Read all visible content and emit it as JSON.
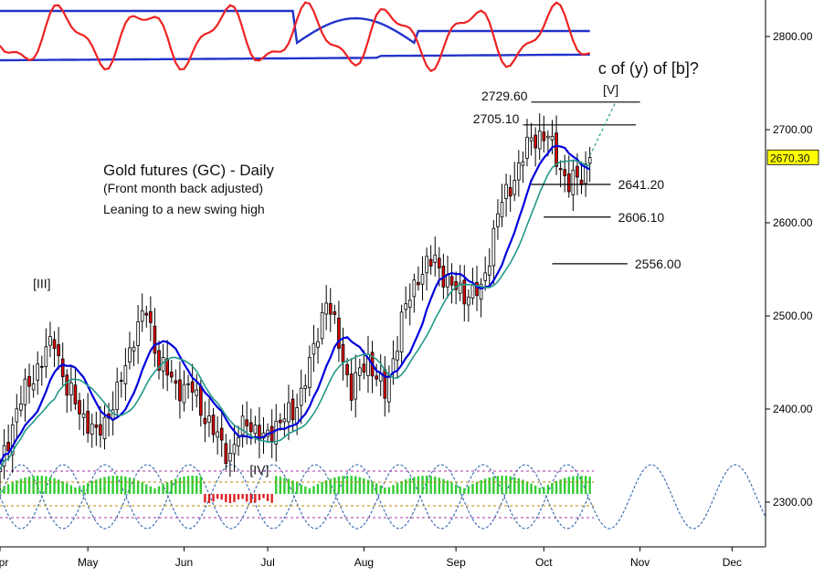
{
  "chart_data": {
    "type": "candlestick",
    "title": "Gold futures (GC) - Daily",
    "subtitle": "(Front month back adjusted)",
    "note": "Leaning to a new swing high",
    "ylim": [
      2250,
      2850
    ],
    "y_ticks": [
      {
        "value": 2300,
        "label": "2300.00"
      },
      {
        "value": 2400,
        "label": "2400.00"
      },
      {
        "value": 2500,
        "label": "2500.00"
      },
      {
        "value": 2600,
        "label": "2600.00"
      },
      {
        "value": 2700,
        "label": "2700.00"
      },
      {
        "value": 2800,
        "label": "2800.00"
      }
    ],
    "x_ticks": [
      {
        "index": 0,
        "label": "Apr"
      },
      {
        "index": 21,
        "label": "May"
      },
      {
        "index": 44,
        "label": "Jun"
      },
      {
        "index": 64,
        "label": "Jul"
      },
      {
        "index": 87,
        "label": "Aug"
      },
      {
        "index": 109,
        "label": "Sep"
      },
      {
        "index": 130,
        "label": "Oct"
      },
      {
        "index": 153,
        "label": "Nov"
      },
      {
        "index": 175,
        "label": "Dec"
      }
    ],
    "x_range": [
      0,
      183
    ],
    "last_price": {
      "value": 2670.3,
      "label": "2670.30",
      "color": "#ffff00"
    },
    "levels": [
      {
        "value": 2729.6,
        "label": "2729.60",
        "from": 127,
        "to": 153,
        "label_side": "left"
      },
      {
        "value": 2705.1,
        "label": "2705.10",
        "from": 125,
        "to": 152,
        "label_side": "left"
      },
      {
        "value": 2641.2,
        "label": "2641.20",
        "from": 127,
        "to": 146,
        "label_side": "right"
      },
      {
        "value": 2606.1,
        "label": "2606.10",
        "from": 130,
        "to": 146,
        "label_side": "right"
      },
      {
        "value": 2556.0,
        "label": "2556.00",
        "from": 132,
        "to": 150,
        "label_side": "right"
      }
    ],
    "wave_labels": [
      {
        "text": "[III]",
        "index": 10,
        "value": 2530
      },
      {
        "text": "[IV]",
        "index": 62,
        "value": 2330
      },
      {
        "text": "c of (y) of [b]?",
        "index": 143,
        "value": 2760
      },
      {
        "text": "[V]",
        "index": 146,
        "value": 2738
      }
    ],
    "projection": {
      "from_index": 141,
      "from_value": 2672,
      "to_index": 147,
      "to_value": 2728
    },
    "colors": {
      "up": "#ffffff",
      "down": "#dd0000",
      "ma_fast": "#0000dd",
      "ma_slow": "#229988",
      "osc": "#ee2222",
      "band": "#2233cc",
      "cycle": "#3366aa",
      "hist_up": "#33cc33",
      "hist_down": "#dd2222"
    },
    "anchors": [
      [
        0,
        2335
      ],
      [
        4,
        2400
      ],
      [
        9,
        2445
      ],
      [
        13,
        2475
      ],
      [
        16,
        2420
      ],
      [
        19,
        2400
      ],
      [
        23,
        2370
      ],
      [
        28,
        2415
      ],
      [
        32,
        2480
      ],
      [
        35,
        2505
      ],
      [
        38,
        2450
      ],
      [
        42,
        2425
      ],
      [
        46,
        2420
      ],
      [
        51,
        2375
      ],
      [
        55,
        2350
      ],
      [
        59,
        2390
      ],
      [
        63,
        2365
      ],
      [
        66,
        2385
      ],
      [
        70,
        2395
      ],
      [
        74,
        2445
      ],
      [
        78,
        2520
      ],
      [
        81,
        2470
      ],
      [
        84,
        2420
      ],
      [
        88,
        2455
      ],
      [
        92,
        2415
      ],
      [
        96,
        2495
      ],
      [
        100,
        2545
      ],
      [
        104,
        2560
      ],
      [
        108,
        2530
      ],
      [
        111,
        2525
      ],
      [
        115,
        2525
      ],
      [
        119,
        2610
      ],
      [
        123,
        2650
      ],
      [
        127,
        2690
      ],
      [
        129,
        2695
      ],
      [
        131,
        2690
      ],
      [
        133,
        2670
      ],
      [
        136,
        2640
      ],
      [
        139,
        2650
      ],
      [
        141,
        2670
      ]
    ]
  }
}
